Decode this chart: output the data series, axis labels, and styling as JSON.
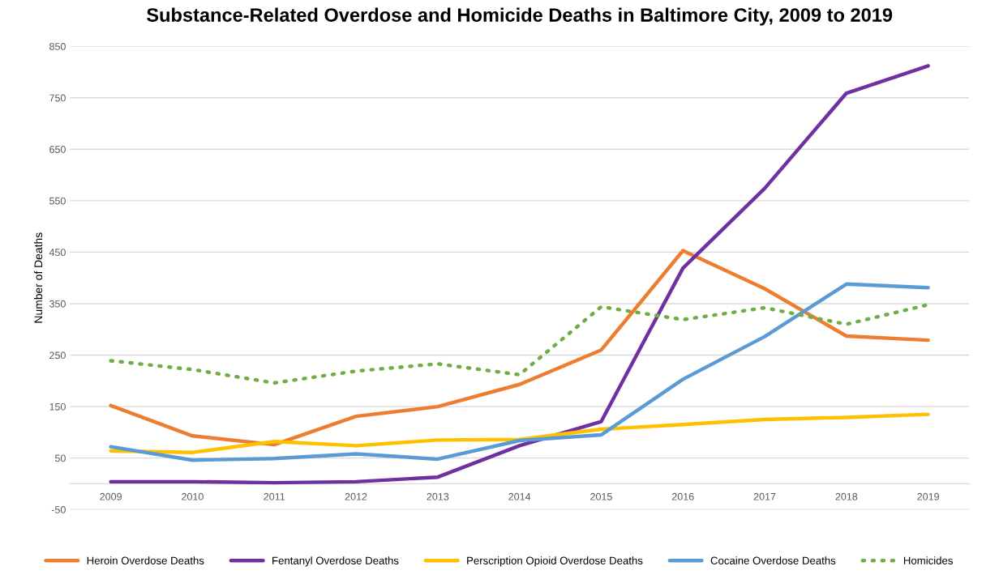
{
  "chart_data": {
    "type": "line",
    "title": "Substance-Related Overdose and Homicide Deaths in Baltimore City, 2009 to 2019",
    "ylabel": "Number of Deaths",
    "categories": [
      "2009",
      "2010",
      "2011",
      "2012",
      "2013",
      "2014",
      "2015",
      "2016",
      "2017",
      "2018",
      "2019"
    ],
    "series": [
      {
        "name": "Heroin Overdose Deaths",
        "color": "#ed7d31",
        "values": [
          152,
          93,
          76,
          131,
          150,
          193,
          260,
          453,
          379,
          287,
          279
        ]
      },
      {
        "name": "Fentanyl Overdose Deaths",
        "color": "#7030a0",
        "values": [
          4,
          4,
          2,
          4,
          13,
          74,
          121,
          419,
          574,
          759,
          812
        ]
      },
      {
        "name": "Perscription Opioid Overdose Deaths",
        "color": "#ffc000",
        "values": [
          64,
          61,
          82,
          74,
          85,
          86,
          106,
          115,
          125,
          129,
          135
        ]
      },
      {
        "name": "Cocaine Overdose Deaths",
        "color": "#5b9bd5",
        "values": [
          72,
          46,
          49,
          58,
          48,
          84,
          95,
          203,
          286,
          388,
          381
        ]
      },
      {
        "name": "Homicides",
        "color": "#70ad47",
        "line_style": "dotted",
        "values": [
          239,
          222,
          196,
          219,
          233,
          212,
          344,
          319,
          342,
          310,
          348
        ]
      }
    ],
    "ylim": [
      -50,
      850
    ],
    "yticks": [
      -50,
      50,
      150,
      250,
      350,
      450,
      550,
      650,
      750,
      850
    ],
    "grid": "y",
    "legend": "bottom",
    "marker": "none",
    "line_style": "solid"
  }
}
